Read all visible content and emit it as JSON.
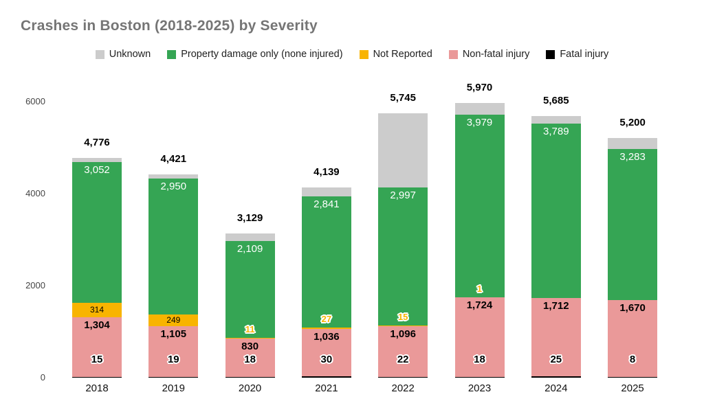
{
  "title": "Crashes in Boston (2018-2025) by Severity",
  "colors": {
    "unknown": "#cccccc",
    "property_damage": "#35a554",
    "not_reported": "#f8b400",
    "non_fatal": "#ea9999",
    "fatal": "#000000",
    "title_text": "#757575",
    "label_black": "#000000",
    "label_white": "#ffffff"
  },
  "legend": {
    "items": [
      {
        "label": "Unknown",
        "color": "#cccccc"
      },
      {
        "label": "Property damage only (none injured)",
        "color": "#35a554"
      },
      {
        "label": "Not Reported",
        "color": "#f8b400"
      },
      {
        "label": "Non-fatal injury",
        "color": "#ea9999"
      },
      {
        "label": "Fatal injury",
        "color": "#000000"
      }
    ]
  },
  "chart_data": {
    "type": "bar",
    "stacked": true,
    "title": "Crashes in Boston (2018-2025) by Severity",
    "xlabel": "",
    "ylabel": "",
    "ylim": [
      0,
      6000
    ],
    "y_ticks": [
      0,
      2000,
      4000,
      6000
    ],
    "grid": false,
    "legend_position": "top",
    "categories": [
      "2018",
      "2019",
      "2020",
      "2021",
      "2022",
      "2023",
      "2024",
      "2025"
    ],
    "series": [
      {
        "name": "Fatal injury",
        "color": "#000000",
        "label_mode": "bottom-outlined",
        "values": [
          15,
          19,
          18,
          30,
          22,
          18,
          25,
          8
        ],
        "labels": [
          "15",
          "19",
          "18",
          "30",
          "22",
          "18",
          "25",
          "8"
        ]
      },
      {
        "name": "Non-fatal injury",
        "color": "#ea9999",
        "label_mode": "inside-top",
        "values": [
          1304,
          1105,
          830,
          1036,
          1096,
          1724,
          1712,
          1670
        ],
        "labels": [
          "1,304",
          "1,105",
          "830",
          "1,036",
          "1,096",
          "1,724",
          "1,712",
          "1,670"
        ]
      },
      {
        "name": "Not Reported",
        "color": "#f8b400",
        "label_mode": "auto",
        "values": [
          314,
          249,
          11,
          27,
          15,
          1,
          0,
          0
        ],
        "labels": [
          "314",
          "249",
          "11",
          "27",
          "15",
          "1",
          null,
          null
        ]
      },
      {
        "name": "Property damage only (none injured)",
        "color": "#35a554",
        "label_mode": "inside-top-white",
        "values": [
          3052,
          2950,
          2109,
          2841,
          2997,
          3979,
          3789,
          3283
        ],
        "labels": [
          "3,052",
          "2,950",
          "2,109",
          "2,841",
          "2,997",
          "3,979",
          "3,789",
          "3,283"
        ]
      },
      {
        "name": "Unknown",
        "color": "#cccccc",
        "label_mode": "none",
        "values": [
          91,
          98,
          161,
          205,
          1615,
          248,
          159,
          239
        ],
        "labels": [
          null,
          null,
          null,
          null,
          null,
          null,
          null,
          null
        ]
      }
    ],
    "totals": [
      4776,
      4421,
      3129,
      4139,
      5745,
      5970,
      5685,
      5200
    ],
    "total_labels": [
      "4,776",
      "4,421",
      "3,129",
      "4,139",
      "5,745",
      "5,970",
      "5,685",
      "5,200"
    ]
  }
}
